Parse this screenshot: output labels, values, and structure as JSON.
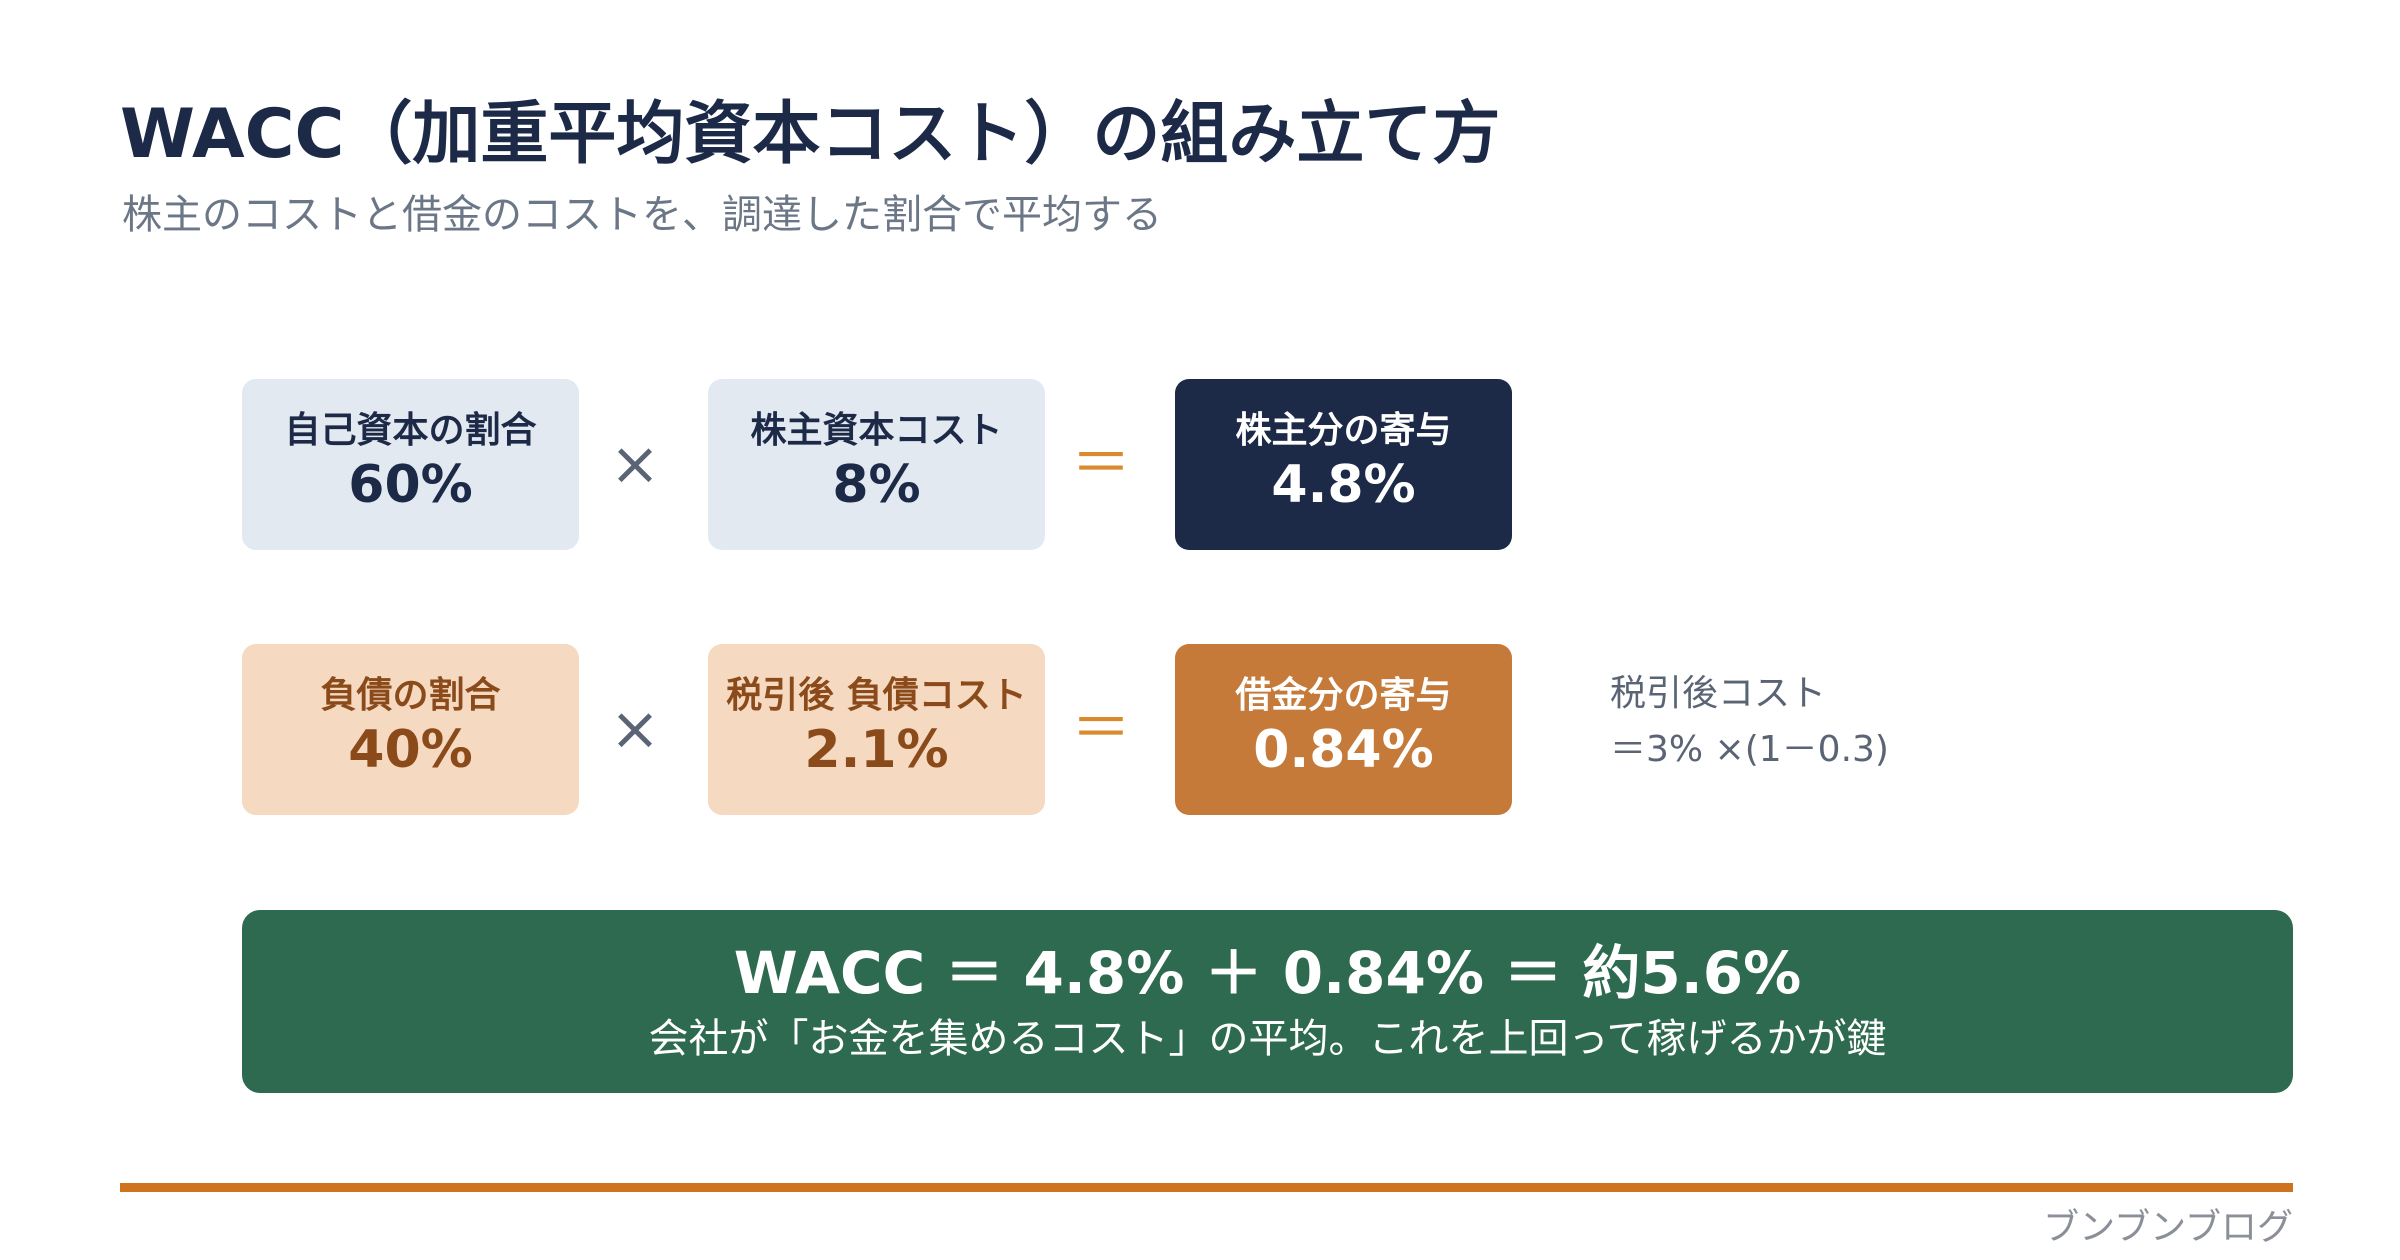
{
  "header": {
    "title": "WACC（加重平均資本コスト）の組み立て方",
    "subtitle": "株主のコストと借金のコストを、調達した割合で平均する"
  },
  "rows": [
    {
      "boxes": [
        {
          "label": "自己資本の割合",
          "value": "60%"
        },
        {
          "label": "株主資本コスト",
          "value": "8%"
        },
        {
          "label": "株主分の寄与",
          "value": "4.8%"
        }
      ],
      "operators": [
        "×",
        "＝"
      ]
    },
    {
      "boxes": [
        {
          "label": "負債の割合",
          "value": "40%"
        },
        {
          "label": "税引後 負債コスト",
          "value": "2.1%"
        },
        {
          "label": "借金分の寄与",
          "value": "0.84%"
        }
      ],
      "operators": [
        "×",
        "＝"
      ]
    }
  ],
  "note": {
    "lines": [
      "税引後コスト",
      "＝3% ×(1－0.3)"
    ]
  },
  "summary": {
    "formula": "WACC ＝ 4.8% ＋ 0.84% ＝ 約5.6%",
    "caption": "会社が「お金を集めるコスト」の平均。これを上回って稼げるかが鍵"
  },
  "footer": {
    "brand": "ブンブンブログ"
  }
}
